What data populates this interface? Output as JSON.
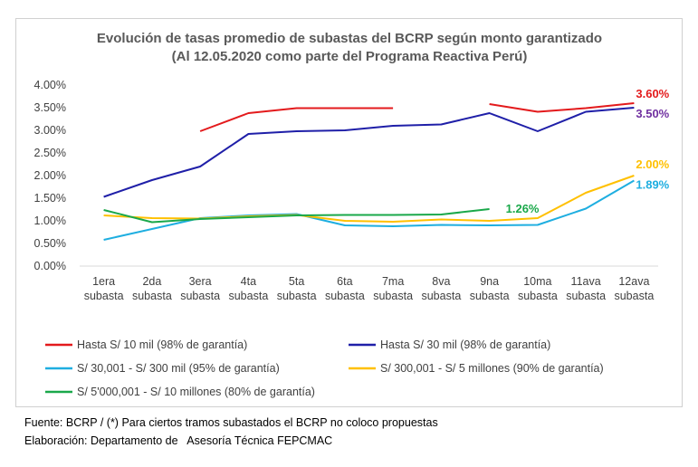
{
  "chart_data": {
    "type": "line",
    "title": "Evolución de tasas promedio de subastas del BCRP según monto garantizado",
    "subtitle": "(Al 12.05.2020 como parte del Programa Reactiva Perú)",
    "categories": [
      [
        "1era",
        "subasta"
      ],
      [
        "2da",
        "subasta"
      ],
      [
        "3era",
        "subasta"
      ],
      [
        "4ta",
        "subasta"
      ],
      [
        "5ta",
        "subasta"
      ],
      [
        "6ta",
        "subasta"
      ],
      [
        "7ma",
        "subasta"
      ],
      [
        "8va",
        "subasta"
      ],
      [
        "9na",
        "subasta"
      ],
      [
        "10ma",
        "subasta"
      ],
      [
        "11ava",
        "subasta"
      ],
      [
        "12ava",
        "subasta"
      ]
    ],
    "yticks": [
      "0.00%",
      "0.50%",
      "1.00%",
      "1.50%",
      "2.00%",
      "2.50%",
      "3.00%",
      "3.50%",
      "4.00%"
    ],
    "ylim": [
      0,
      4
    ],
    "grid": false,
    "legend_position": "bottom",
    "series": [
      {
        "name": "Hasta S/ 10 mil (98% de garantía)",
        "color": "#e31a1c",
        "values": [
          null,
          null,
          2.98,
          3.38,
          3.49,
          3.49,
          3.49,
          null,
          3.58,
          3.41,
          3.49,
          3.6
        ],
        "end_label": "3.60%",
        "label_color": "#e31a1c"
      },
      {
        "name": "Hasta S/ 30 mil (98% de garantía)",
        "color": "#1f1fa8",
        "values": [
          1.53,
          1.9,
          2.2,
          2.92,
          2.98,
          3.0,
          3.1,
          3.13,
          3.38,
          2.98,
          3.41,
          3.5
        ],
        "end_label": "3.50%",
        "label_color": "#7030a0"
      },
      {
        "name": "S/ 30,001 - S/ 300 mil (95% de garantía)",
        "color": "#1eaee0",
        "values": [
          0.58,
          0.82,
          1.06,
          1.12,
          1.15,
          0.9,
          0.88,
          0.91,
          0.9,
          0.91,
          1.27,
          1.89
        ],
        "end_label": "1.89%",
        "label_color": "#1eaee0"
      },
      {
        "name": "S/ 300,001 - S/ 5 millones (90% de garantía)",
        "color": "#ffc000",
        "values": [
          1.12,
          1.06,
          1.05,
          1.1,
          1.13,
          1.0,
          0.98,
          1.03,
          1.0,
          1.06,
          1.62,
          2.0
        ],
        "end_label": "2.00%",
        "label_color": "#ffc000"
      },
      {
        "name": "S/ 5'000,001 - S/ 10 millones (80% de garantía)",
        "color": "#1aa84a",
        "values": [
          1.24,
          0.97,
          1.04,
          1.08,
          1.12,
          1.13,
          1.13,
          1.14,
          1.26,
          null,
          null,
          null
        ],
        "end_label": "1.26%",
        "label_color": "#1aa84a"
      }
    ]
  },
  "footer": {
    "source": "Fuente: BCRP / (*) Para ciertos tramos subastados el BCRP no coloco propuestas",
    "elaboration": "Elaboración: Departamento de   Asesoría Técnica FEPCMAC"
  }
}
